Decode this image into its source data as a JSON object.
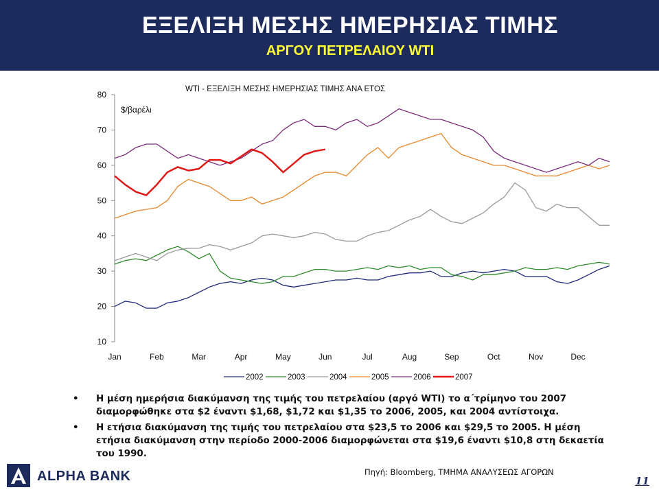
{
  "header": {
    "title": "ΕΞΕΛΙΞΗ ΜΕΣΗΣ ΗΜΕΡΗΣΙΑΣ ΤΙΜΗΣ",
    "subtitle": "ΑΡΓΟΥ ΠΕΤΡΕΛΑΙΟΥ WTI"
  },
  "chart_data": {
    "type": "line",
    "title": "WTI - ΕΞΕΛΙΞΗ ΜΕΣΗΣ ΗΜΕΡΗΣΙΑΣ ΤΙΜΗΣ ΑΝΑ ΕΤΟΣ",
    "ylabel": "$/βαρέλι",
    "xlabel": "",
    "ylim": [
      10,
      80
    ],
    "yticks": [
      "80",
      "70",
      "60",
      "50",
      "40",
      "30",
      "20",
      "10"
    ],
    "categories": [
      "Jan",
      "Feb",
      "Mar",
      "Apr",
      "May",
      "Jun",
      "Jul",
      "Aug",
      "Sep",
      "Oct",
      "Nov",
      "Dec"
    ],
    "grid": false,
    "legend_position": "bottom",
    "x": [
      0,
      0.25,
      0.5,
      0.75,
      1,
      1.25,
      1.5,
      1.75,
      2,
      2.25,
      2.5,
      2.75,
      3,
      3.25,
      3.5,
      3.75,
      4,
      4.25,
      4.5,
      4.75,
      5,
      5.25,
      5.5,
      5.75,
      6,
      6.25,
      6.5,
      6.75,
      7,
      7.25,
      7.5,
      7.75,
      8,
      8.25,
      8.5,
      8.75,
      9,
      9.25,
      9.5,
      9.75,
      10,
      10.25,
      10.5,
      10.75,
      11,
      11.25,
      11.5,
      11.75
    ],
    "series": [
      {
        "name": "2002",
        "color": "#1f2a7a",
        "width": 1.3,
        "values": [
          20,
          21.5,
          21,
          19.5,
          19.5,
          21,
          21.5,
          22.5,
          24,
          25.5,
          26.5,
          27,
          26.5,
          27.5,
          28,
          27.5,
          26,
          25.5,
          26,
          26.5,
          27,
          27.5,
          27.5,
          28,
          27.5,
          27.5,
          28.5,
          29,
          29.5,
          29.5,
          30,
          28.5,
          28.5,
          29.5,
          30,
          29.5,
          30,
          30.5,
          30,
          28.5,
          28.5,
          28.5,
          27,
          26.5,
          27.5,
          29,
          30.5,
          31.5
        ]
      },
      {
        "name": "2003",
        "color": "#2e8b2e",
        "width": 1.3,
        "values": [
          32,
          33,
          33.5,
          33,
          34.5,
          36,
          37,
          35.5,
          33.5,
          35,
          30,
          28,
          27.5,
          27,
          26.5,
          27,
          28.5,
          28.5,
          29.5,
          30.5,
          30.5,
          30,
          30,
          30.5,
          31,
          30.5,
          31.5,
          31,
          31.5,
          30.5,
          31,
          31,
          29,
          28.5,
          27.5,
          29,
          29,
          29.5,
          30,
          31,
          30.5,
          30.5,
          31,
          30.5,
          31.5,
          32,
          32.5,
          32
        ]
      },
      {
        "name": "2004",
        "color": "#9a9a9a",
        "width": 1.3,
        "values": [
          33,
          34,
          35,
          34,
          33,
          35,
          36,
          36.5,
          36.5,
          37.5,
          37,
          36,
          37,
          38,
          40,
          40.5,
          40,
          39.5,
          40,
          41,
          40.5,
          39,
          38.5,
          38.5,
          40,
          41,
          41.5,
          43,
          44.5,
          45.5,
          47.5,
          45.5,
          44,
          43.5,
          45,
          46.5,
          49,
          51,
          55,
          53,
          48,
          47,
          49,
          48,
          48,
          45.5,
          43,
          43
        ]
      },
      {
        "name": "2005",
        "color": "#e6882a",
        "width": 1.3,
        "values": [
          45,
          46,
          47,
          47.5,
          48,
          50,
          54,
          56,
          55,
          54,
          52,
          50,
          50,
          51,
          49,
          50,
          51,
          53,
          55,
          57,
          58,
          58,
          57,
          60,
          63,
          65,
          62,
          65,
          66,
          67,
          68,
          69,
          65,
          63,
          62,
          61,
          60,
          60,
          59,
          58,
          57,
          57,
          57,
          58,
          59,
          60,
          59,
          60
        ]
      },
      {
        "name": "2006",
        "color": "#7b2d7b",
        "width": 1.3,
        "values": [
          62,
          63,
          65,
          66,
          66,
          64,
          62,
          63,
          62,
          61,
          60,
          61,
          62,
          64,
          66,
          67,
          70,
          72,
          73,
          71,
          71,
          70,
          72,
          73,
          71,
          72,
          74,
          76,
          75,
          74,
          73,
          73,
          72,
          71,
          70,
          68,
          64,
          62,
          61,
          60,
          59,
          58,
          59,
          60,
          61,
          60,
          62,
          61
        ]
      },
      {
        "name": "2007",
        "color": "#e01818",
        "width": 2.5,
        "values": [
          57,
          54.5,
          52.5,
          51.5,
          54.5,
          58,
          59.5,
          58.5,
          59,
          61.5,
          61.5,
          60.5,
          62.5,
          64.5,
          63.5,
          61,
          58,
          60.5,
          63,
          64,
          64.5,
          null,
          null,
          null,
          null,
          null,
          null,
          null,
          null,
          null,
          null,
          null,
          null,
          null,
          null,
          null,
          null,
          null,
          null,
          null,
          null,
          null,
          null,
          null,
          null,
          null,
          null,
          null
        ]
      }
    ]
  },
  "bullets": [
    "Η μέση ημερήσια διακύμανση της τιμής του πετρελαίου (αργό WTI) το α΄τρίμηνο του 2007 διαμορφώθηκε στα $2 έναντι $1,68, $1,72 και $1,35 το 2006, 2005, και 2004 αντίστοιχα.",
    "Η ετήσια διακύμανση της τιμής του πετρελαίου στα $23,5 το 2006 και $29,5 το 2005. Η μέση ετήσια διακύμανση στην περίοδο 2000-2006 διαμορφώνεται στα $19,6 έναντι $10,8 στη δεκαετία του 1990."
  ],
  "bullet_symbol": "•",
  "footer": {
    "brand": "ALPHA BANK",
    "source": "Πηγή: Bloomberg, ΤΜΗΜΑ ΑΝΑΛΥΣΕΩΣ ΑΓΟΡΩΝ",
    "page": "11"
  },
  "colors": {
    "header_bg": "#1c2a5c",
    "title": "#ffffff",
    "subtitle": "#ffff33"
  }
}
